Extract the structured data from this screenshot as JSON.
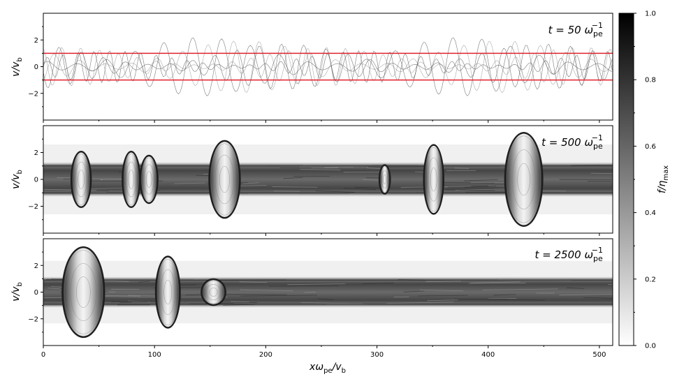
{
  "chart_data": [
    {
      "type": "heatmap",
      "panel": "t50",
      "annotation": {
        "prefix": "t = 50 ",
        "symbol": "ω",
        "sub": "pe",
        "sup": "−1"
      },
      "xlim": [
        0,
        512
      ],
      "ylim": [
        -4,
        4
      ],
      "y_ticks": [
        -2,
        0,
        2
      ],
      "ylabel": {
        "main": "v/v",
        "sub": "b"
      },
      "reference_lines": [
        1,
        -1
      ],
      "reference_line_color": "#e0202a",
      "description": "thin phase-space filaments oscillating between v/v_b ≈ -2 and 2"
    },
    {
      "type": "heatmap",
      "panel": "t500",
      "annotation": {
        "prefix": "t = 500 ",
        "symbol": "ω",
        "sub": "pe",
        "sup": "−1"
      },
      "xlim": [
        0,
        512
      ],
      "ylim": [
        -4,
        4
      ],
      "y_ticks": [
        -2,
        0,
        2
      ],
      "ylabel": {
        "main": "v/v",
        "sub": "b"
      },
      "band_halfwidth": 1.0,
      "holes": [
        {
          "x": 34,
          "half_height": 2.0,
          "width": 8
        },
        {
          "x": 79,
          "half_height": 2.0,
          "width": 7
        },
        {
          "x": 95,
          "half_height": 1.7,
          "width": 7
        },
        {
          "x": 163,
          "half_height": 2.8,
          "width": 13
        },
        {
          "x": 307,
          "half_height": 1.0,
          "width": 4
        },
        {
          "x": 351,
          "half_height": 2.5,
          "width": 8
        },
        {
          "x": 432,
          "half_height": 3.4,
          "width": 16
        }
      ]
    },
    {
      "type": "heatmap",
      "panel": "t2500",
      "annotation": {
        "prefix": "t = 2500 ",
        "symbol": "ω",
        "sub": "pe",
        "sup": "−1"
      },
      "xlim": [
        0,
        512
      ],
      "ylim": [
        -4,
        4
      ],
      "y_ticks": [
        -2,
        0,
        2
      ],
      "ylabel": {
        "main": "v/v",
        "sub": "b"
      },
      "xlabel": {
        "main_x": "x",
        "omega": "ω",
        "sub_pe": "pe",
        "slash": "/v",
        "sub_b": "b"
      },
      "x_ticks": [
        0,
        100,
        200,
        300,
        400,
        500
      ],
      "band_halfwidth": 0.9,
      "holes": [
        {
          "x": 36,
          "half_height": 3.3,
          "width": 18
        },
        {
          "x": 112,
          "half_height": 2.6,
          "width": 10
        },
        {
          "x": 153,
          "half_height": 0.9,
          "width": 10
        }
      ]
    }
  ],
  "colorbar": {
    "label_main": "f/η",
    "label_sub": "max",
    "range": [
      0,
      1
    ],
    "ticks": [
      "0.0",
      "0.2",
      "0.4",
      "0.6",
      "0.8",
      "1.0"
    ],
    "tick_values": [
      0,
      0.2,
      0.4,
      0.6,
      0.8,
      1.0
    ],
    "colormap": "gray_r"
  }
}
